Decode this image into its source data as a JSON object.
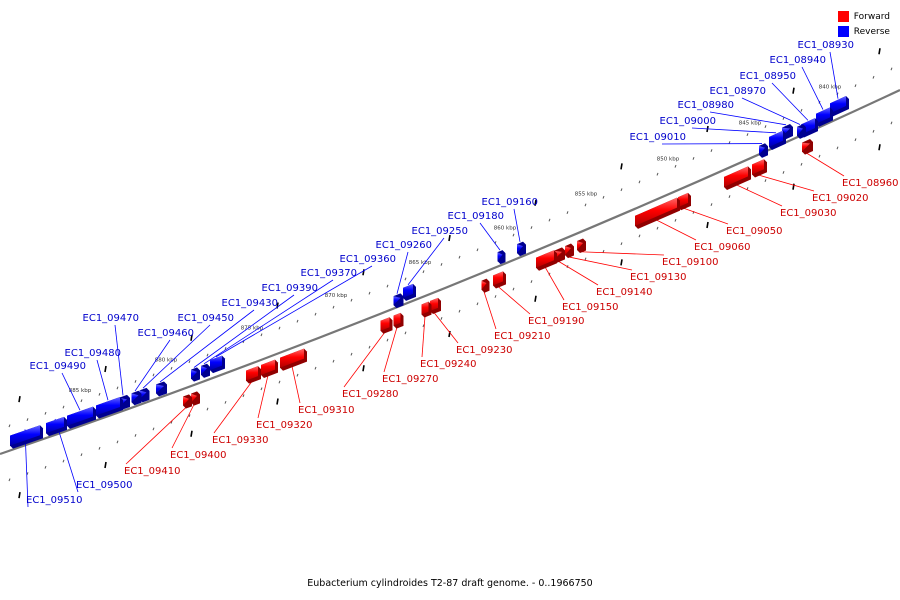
{
  "legend": [
    {
      "label": "Forward",
      "color": "#ff0000"
    },
    {
      "label": "Reverse",
      "color": "#0000ff"
    }
  ],
  "caption": "Eubacterium cylindroides T2-87 draft genome. - 0..1966750",
  "colors": {
    "forward": "#ff0000",
    "reverse": "#0000ff",
    "backbone": "#777777",
    "forward_label": "#cc0000",
    "reverse_label": "#0000cc"
  },
  "scale_labels": [
    {
      "text": "840 kbp",
      "kbp": 840
    },
    {
      "text": "845 kbp",
      "kbp": 845
    },
    {
      "text": "850 kbp",
      "kbp": 850
    },
    {
      "text": "855 kbp",
      "kbp": 855
    },
    {
      "text": "860 kbp",
      "kbp": 860
    },
    {
      "text": "865 kbp",
      "kbp": 865
    },
    {
      "text": "870 kbp",
      "kbp": 870
    },
    {
      "text": "875 kbp",
      "kbp": 875
    },
    {
      "text": "880 kbp",
      "kbp": 880
    },
    {
      "text": "885 kbp",
      "kbp": 885
    }
  ],
  "genes": [
    {
      "id": "EC1_08930",
      "strand": "reverse"
    },
    {
      "id": "EC1_08940",
      "strand": "reverse"
    },
    {
      "id": "EC1_08950",
      "strand": "reverse"
    },
    {
      "id": "EC1_08960",
      "strand": "forward"
    },
    {
      "id": "EC1_08970",
      "strand": "reverse"
    },
    {
      "id": "EC1_08980",
      "strand": "reverse"
    },
    {
      "id": "EC1_09000",
      "strand": "reverse"
    },
    {
      "id": "EC1_09010",
      "strand": "reverse"
    },
    {
      "id": "EC1_09020",
      "strand": "forward"
    },
    {
      "id": "EC1_09030",
      "strand": "forward"
    },
    {
      "id": "EC1_09050",
      "strand": "forward"
    },
    {
      "id": "EC1_09060",
      "strand": "forward"
    },
    {
      "id": "EC1_09100",
      "strand": "forward"
    },
    {
      "id": "EC1_09130",
      "strand": "forward"
    },
    {
      "id": "EC1_09140",
      "strand": "forward"
    },
    {
      "id": "EC1_09150",
      "strand": "forward"
    },
    {
      "id": "EC1_09160",
      "strand": "reverse"
    },
    {
      "id": "EC1_09180",
      "strand": "reverse"
    },
    {
      "id": "EC1_09190",
      "strand": "forward"
    },
    {
      "id": "EC1_09210",
      "strand": "forward"
    },
    {
      "id": "EC1_09230",
      "strand": "forward"
    },
    {
      "id": "EC1_09240",
      "strand": "forward"
    },
    {
      "id": "EC1_09250",
      "strand": "reverse"
    },
    {
      "id": "EC1_09260",
      "strand": "reverse"
    },
    {
      "id": "EC1_09270",
      "strand": "forward"
    },
    {
      "id": "EC1_09280",
      "strand": "forward"
    },
    {
      "id": "EC1_09310",
      "strand": "forward"
    },
    {
      "id": "EC1_09320",
      "strand": "forward"
    },
    {
      "id": "EC1_09330",
      "strand": "forward"
    },
    {
      "id": "EC1_09360",
      "strand": "reverse"
    },
    {
      "id": "EC1_09370",
      "strand": "reverse"
    },
    {
      "id": "EC1_09390",
      "strand": "reverse"
    },
    {
      "id": "EC1_09400",
      "strand": "forward"
    },
    {
      "id": "EC1_09410",
      "strand": "forward"
    },
    {
      "id": "EC1_09430",
      "strand": "reverse"
    },
    {
      "id": "EC1_09450",
      "strand": "reverse"
    },
    {
      "id": "EC1_09460",
      "strand": "reverse"
    },
    {
      "id": "EC1_09470",
      "strand": "reverse"
    },
    {
      "id": "EC1_09480",
      "strand": "reverse"
    },
    {
      "id": "EC1_09490",
      "strand": "reverse"
    },
    {
      "id": "EC1_09500",
      "strand": "reverse"
    },
    {
      "id": "EC1_09510",
      "strand": "reverse"
    }
  ]
}
